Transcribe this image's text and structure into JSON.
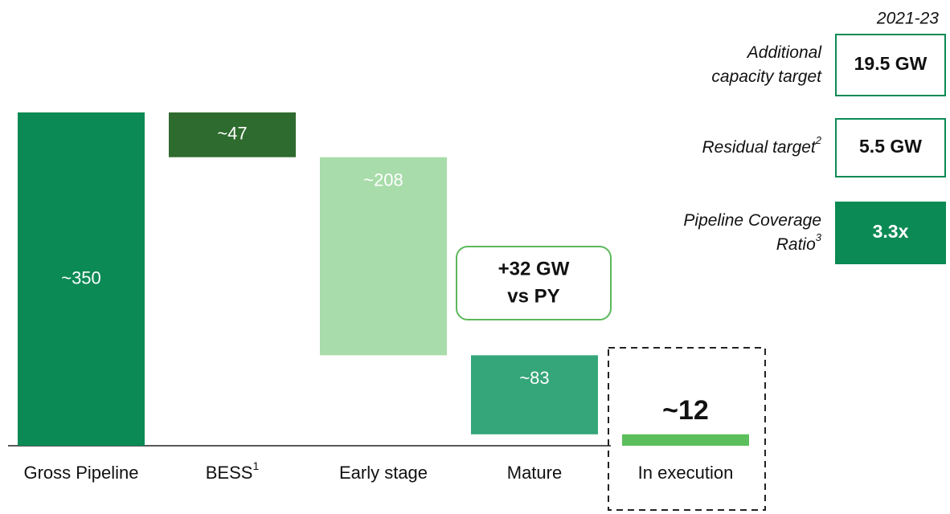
{
  "chart_data": {
    "type": "waterfall",
    "categories": [
      "Gross Pipeline",
      "BESS",
      "Early stage",
      "Mature",
      "In execution"
    ],
    "category_footnotes": [
      null,
      "1",
      null,
      null,
      null
    ],
    "values": [
      350,
      47,
      208,
      83,
      12
    ],
    "value_labels": [
      "~350",
      "~47",
      "~208",
      "~83",
      "~12"
    ],
    "measures": [
      "absolute",
      "decrease",
      "decrease",
      "decrease",
      "total"
    ],
    "colors": [
      "#0b8a55",
      "#2e6b2e",
      "#a8dcaa",
      "#35a57a",
      "#5bbf5b"
    ],
    "annotation": [
      "+32 GW",
      "vs PY"
    ]
  },
  "side_panel": {
    "title": "2021-23",
    "items": [
      {
        "label": [
          "Additional",
          "capacity target"
        ],
        "footnote": null,
        "value": "19.5 GW",
        "filled": false
      },
      {
        "label": [
          "Residual target"
        ],
        "footnote": "2",
        "value": "5.5 GW",
        "filled": false
      },
      {
        "label": [
          "Pipeline Coverage",
          "Ratio"
        ],
        "footnote": "3",
        "value": "3.3x",
        "filled": true
      }
    ]
  }
}
